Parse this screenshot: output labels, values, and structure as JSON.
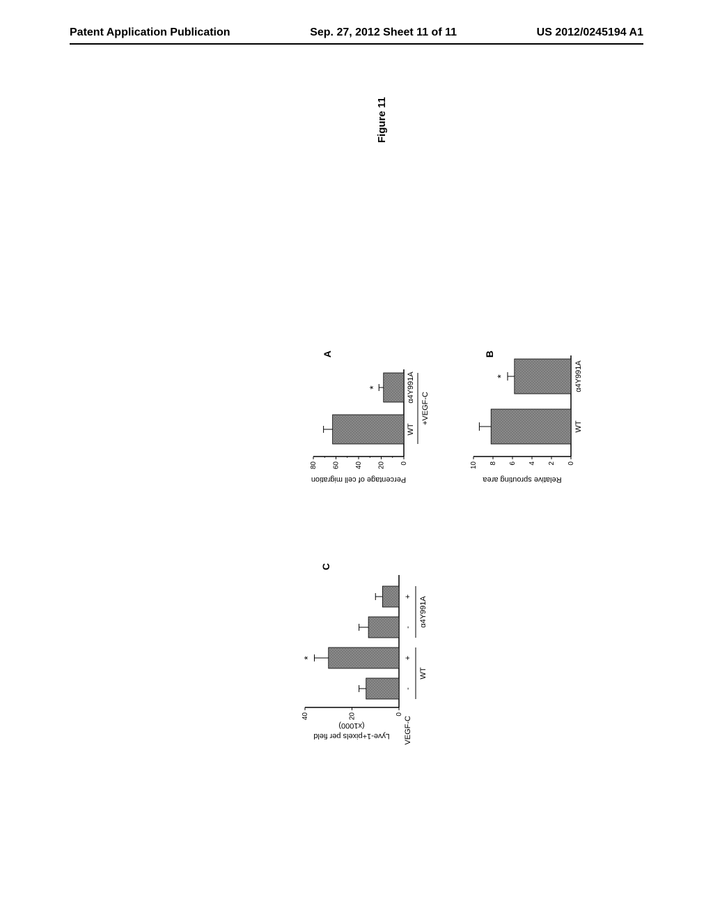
{
  "header": {
    "left": "Patent Application Publication",
    "center": "Sep. 27, 2012  Sheet 11 of 11",
    "right": "US 2012/0245194 A1"
  },
  "figure_title": "Figure 11",
  "panelA": {
    "label": "A",
    "type": "bar",
    "ylabel": "Percentage of cell migration",
    "ylim": [
      0,
      80
    ],
    "ytick_step": 20,
    "categories": [
      "WT",
      "α4Y991A"
    ],
    "values": [
      63,
      18
    ],
    "errors": [
      8,
      4
    ],
    "sig_marks": [
      "",
      "*"
    ],
    "bracket_label": "+VEGF-C",
    "bar_color": "#8a8a8a",
    "bar_pattern": true,
    "grid_color": "#000000"
  },
  "panelB": {
    "label": "B",
    "type": "bar",
    "ylabel": "Relative sprouting area",
    "ylim": [
      0,
      10
    ],
    "ytick_step": 2,
    "categories": [
      "WT",
      "α4Y991A"
    ],
    "values": [
      8.2,
      5.8
    ],
    "errors": [
      1.2,
      0.7
    ],
    "sig_marks": [
      "",
      "*"
    ],
    "bar_color": "#8a8a8a",
    "bar_pattern": true,
    "grid_color": "#000000"
  },
  "panelC": {
    "label": "C",
    "type": "bar",
    "ylabel": "Lyve-1+pixels per field",
    "ylabel_sub": "(x1000)",
    "ylim": [
      0,
      40
    ],
    "ytick_step": 20,
    "row_label": "VEGF-C",
    "row_values": [
      "-",
      "+",
      "-",
      "+"
    ],
    "group_labels": [
      "WT",
      "α4Y991A"
    ],
    "values": [
      14,
      30,
      13,
      7
    ],
    "errors": [
      3,
      6,
      4,
      3
    ],
    "sig_marks": [
      "",
      "*",
      "",
      ""
    ],
    "bar_color": "#8a8a8a",
    "bar_pattern": true,
    "grid_color": "#000000"
  }
}
